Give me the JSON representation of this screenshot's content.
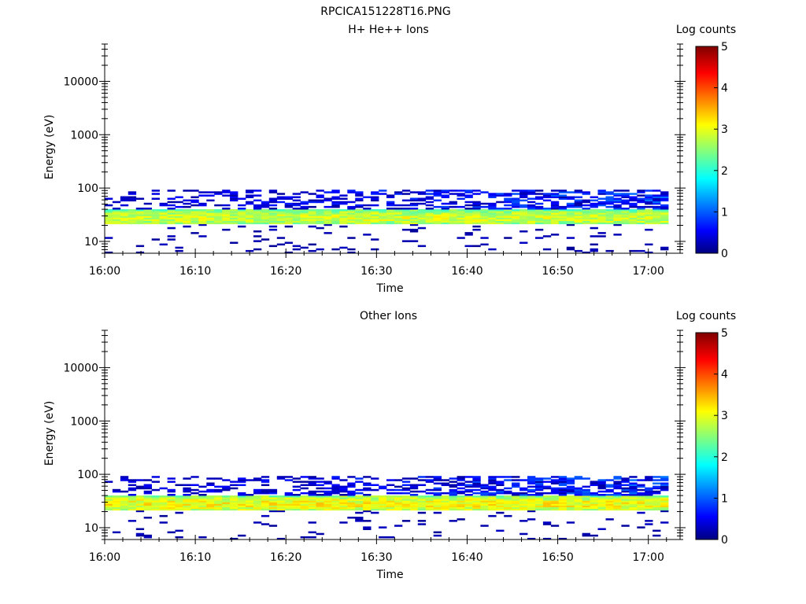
{
  "figure_title": "RPCICA151228T16.PNG",
  "chart_data": [
    {
      "type": "heatmap",
      "title": "H+ He++ Ions",
      "xlabel": "Time",
      "ylabel": "Energy (eV)",
      "x_tick_labels": [
        "16:00",
        "16:10",
        "16:20",
        "16:30",
        "16:40",
        "16:50",
        "17:00"
      ],
      "y_scale": "log",
      "ylim": [
        6,
        50000
      ],
      "y_tick_labels": [
        "10",
        "100",
        "1000",
        "10000"
      ],
      "colorbar": {
        "label": "Log counts",
        "ticks": [
          "0",
          "1",
          "2",
          "3",
          "4",
          "5"
        ],
        "range": [
          0,
          5
        ]
      },
      "data_summary": {
        "time_range": [
          "16:00",
          "17:03"
        ],
        "band_center_eV": 28,
        "band_peak_log_counts": 2.9,
        "band_low_eV": 21,
        "band_high_eV": 40,
        "sparse_range_eV": [
          45,
          95
        ],
        "sparse_below_eV": [
          6,
          20
        ]
      }
    },
    {
      "type": "heatmap",
      "title": "Other Ions",
      "xlabel": "Time",
      "ylabel": "Energy (eV)",
      "x_tick_labels": [
        "16:00",
        "16:10",
        "16:20",
        "16:30",
        "16:40",
        "16:50",
        "17:00"
      ],
      "y_scale": "log",
      "ylim": [
        6,
        50000
      ],
      "y_tick_labels": [
        "10",
        "100",
        "1000",
        "10000"
      ],
      "colorbar": {
        "label": "Log counts",
        "ticks": [
          "0",
          "1",
          "2",
          "3",
          "4",
          "5"
        ],
        "range": [
          0,
          5
        ]
      },
      "data_summary": {
        "time_range": [
          "16:00",
          "17:03"
        ],
        "band_center_eV": 28,
        "band_peak_log_counts": 3.1,
        "band_low_eV": 21,
        "band_high_eV": 40,
        "sparse_range_eV": [
          45,
          95
        ],
        "sparse_below_eV": [
          6,
          20
        ]
      }
    }
  ]
}
